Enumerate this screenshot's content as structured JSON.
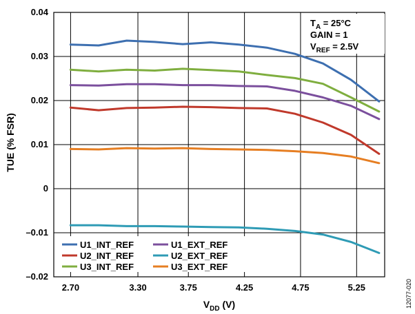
{
  "chart_data": {
    "type": "line",
    "xlabel_main": "V",
    "xlabel_sub": "DD",
    "xlabel_unit": " (V)",
    "ylabel": "TUE (% FSR)",
    "x": [
      2.7,
      2.9,
      3.1,
      3.3,
      3.5,
      3.7,
      3.9,
      4.1,
      4.3,
      4.5,
      4.7,
      4.9,
      5.1,
      5.3
    ],
    "xlim": [
      2.55,
      5.5
    ],
    "ylim": [
      -0.02,
      0.04
    ],
    "x_ticks": [
      "2.70",
      "3.30",
      "3.75",
      "4.25",
      "4.75",
      "5.25"
    ],
    "x_tick_values": [
      2.7,
      3.3,
      3.75,
      4.25,
      4.75,
      5.25
    ],
    "y_ticks": [
      "0.04",
      "0.03",
      "0.02",
      "0.01",
      "0",
      "–0.01",
      "–0.02"
    ],
    "y_tick_values": [
      0.04,
      0.03,
      0.02,
      0.01,
      0,
      -0.01,
      -0.02
    ],
    "grid": true,
    "legend_position": "bottom-left",
    "conditions": {
      "ta": {
        "main": "T",
        "sub": "A",
        "rest": " = 25°C"
      },
      "gain": "GAIN = 1",
      "vref": {
        "main": "V",
        "sub": "REF",
        "rest": " = 2.5V"
      }
    },
    "series": [
      {
        "name": "U1_INT_REF",
        "color": "#3d6fb0",
        "values": [
          0.0327,
          0.0325,
          0.0336,
          0.0333,
          0.0328,
          0.0332,
          0.0327,
          0.032,
          0.0306,
          0.0284,
          0.0247,
          0.0198,
          null,
          null
        ]
      },
      {
        "name": "U1_EXT_REF",
        "color": "#7b4f9d",
        "values": [
          0.0235,
          0.0234,
          0.0237,
          0.0237,
          0.0235,
          0.0235,
          0.0233,
          0.0232,
          0.0222,
          0.0207,
          0.0188,
          0.0158,
          null,
          null
        ]
      },
      {
        "name": "U2_INT_REF",
        "color": "#c0392b",
        "values": [
          0.0184,
          0.0178,
          0.0183,
          0.0184,
          0.0186,
          0.0185,
          0.0183,
          0.0182,
          0.017,
          0.015,
          0.0122,
          0.0079,
          null,
          null
        ]
      },
      {
        "name": "U2_EXT_REF",
        "color": "#2e9bb5",
        "values": [
          -0.0083,
          -0.0083,
          -0.0085,
          -0.0085,
          -0.0086,
          -0.0087,
          -0.0088,
          -0.0091,
          -0.0096,
          -0.0104,
          -0.0121,
          -0.0146,
          null,
          null
        ]
      },
      {
        "name": "U3_INT_REF",
        "color": "#7fae3f",
        "values": [
          0.027,
          0.0266,
          0.027,
          0.0268,
          0.0272,
          0.0269,
          0.0266,
          0.0258,
          0.0251,
          0.0238,
          0.0207,
          0.0175,
          null,
          null
        ]
      },
      {
        "name": "U3_EXT_REF",
        "color": "#e67e22",
        "values": [
          0.009,
          0.0089,
          0.0092,
          0.0091,
          0.0092,
          0.009,
          0.0089,
          0.0088,
          0.0085,
          0.0081,
          0.0073,
          0.0058,
          null,
          null
        ]
      }
    ],
    "series_x": [
      2.7,
      2.95,
      3.2,
      3.45,
      3.7,
      3.95,
      4.2,
      4.45,
      4.7,
      4.95,
      5.2,
      5.45
    ]
  },
  "figure_code": "12077-020"
}
